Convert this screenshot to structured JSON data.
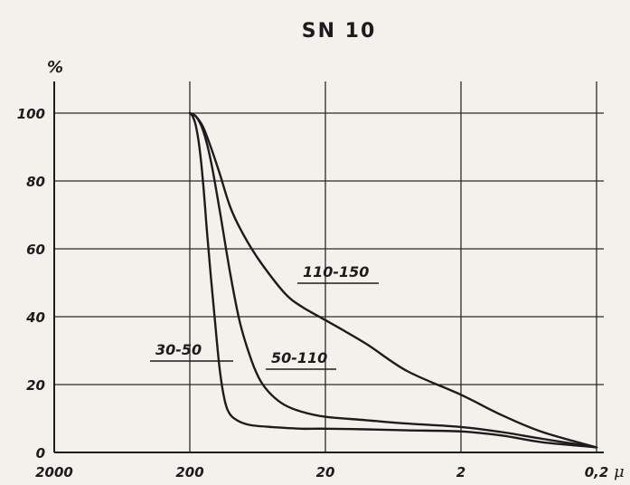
{
  "chart_data": {
    "type": "line",
    "title": "SN 10",
    "ylabel": "%",
    "x_unit": "μ",
    "x_scale": "log",
    "x_reversed": true,
    "xlim": [
      2000,
      0.2
    ],
    "ylim": [
      0,
      100
    ],
    "grid": true,
    "x_ticks": [
      {
        "value": 2000,
        "label": "2000"
      },
      {
        "value": 200,
        "label": "200"
      },
      {
        "value": 20,
        "label": "20"
      },
      {
        "value": 2,
        "label": "2"
      },
      {
        "value": 0.2,
        "label": "0,2"
      }
    ],
    "y_ticks": [
      {
        "value": 0,
        "label": "0"
      },
      {
        "value": 20,
        "label": "20"
      },
      {
        "value": 40,
        "label": "40"
      },
      {
        "value": 60,
        "label": "60"
      },
      {
        "value": 80,
        "label": "80"
      },
      {
        "value": 100,
        "label": "100"
      }
    ],
    "series": [
      {
        "name": "30-50",
        "x": [
          200,
          190,
          180,
          170,
          160,
          150,
          140,
          130,
          120,
          110,
          100,
          85,
          70,
          50,
          30,
          20,
          10,
          5,
          2,
          1,
          0.5,
          0.2
        ],
        "y": [
          100,
          99,
          96,
          90,
          80,
          66,
          52,
          38,
          24,
          15,
          11,
          9,
          8,
          7.5,
          7,
          7,
          6.8,
          6.5,
          6.2,
          5,
          3,
          1.5
        ]
      },
      {
        "name": "50-110",
        "x": [
          200,
          180,
          160,
          140,
          120,
          100,
          85,
          70,
          60,
          50,
          40,
          30,
          20,
          10,
          5,
          2,
          1,
          0.5,
          0.2
        ],
        "y": [
          100,
          99,
          95,
          86,
          71,
          52,
          38,
          27,
          21,
          17,
          14,
          12,
          10.5,
          9.5,
          8.5,
          7.5,
          6,
          4,
          1.5
        ]
      },
      {
        "name": "110-150",
        "x": [
          200,
          180,
          160,
          140,
          120,
          100,
          80,
          60,
          40,
          30,
          20,
          10,
          5,
          2,
          1,
          0.5,
          0.2
        ],
        "y": [
          100,
          99,
          96,
          90,
          82,
          72,
          64,
          56,
          47,
          43,
          39,
          32,
          24,
          17,
          11,
          6,
          1.5
        ]
      }
    ],
    "series_labels": [
      "110-150",
      "50-110",
      "30-50"
    ]
  }
}
